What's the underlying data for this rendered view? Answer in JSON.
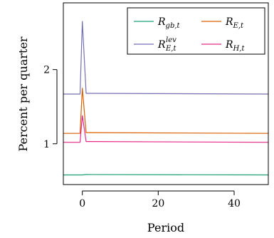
{
  "chart_data": {
    "type": "line",
    "title": "",
    "xlabel": "Period",
    "ylabel": "Percent per quarter",
    "xlim": [
      -5,
      49
    ],
    "ylim": [
      0.45,
      2.9
    ],
    "xticks": [
      0,
      20,
      40
    ],
    "yticks": [
      1,
      2
    ],
    "xtick_labels": [
      "0",
      "20",
      "40"
    ],
    "ytick_labels": [
      "1",
      "2"
    ],
    "grid": false,
    "legend_position": "top-right",
    "series": [
      {
        "key": "rgb",
        "legend": {
          "base": "R",
          "sub": "gb,t",
          "sup": ""
        },
        "color": "#1b9e77",
        "x": [
          -5,
          0,
          1,
          49
        ],
        "y": [
          0.58,
          0.58,
          0.585,
          0.58
        ]
      },
      {
        "key": "re",
        "legend": {
          "base": "R",
          "sub": "E,t",
          "sup": ""
        },
        "color": "#d95f02",
        "x": [
          -5,
          -0.6,
          0,
          1,
          49
        ],
        "y": [
          1.14,
          1.14,
          1.75,
          1.15,
          1.14
        ]
      },
      {
        "key": "relev",
        "legend": {
          "base": "R",
          "sub": "E,t",
          "sup": "lev"
        },
        "color": "#7570b3",
        "x": [
          -5,
          -0.6,
          0,
          1,
          49
        ],
        "y": [
          1.67,
          1.67,
          2.65,
          1.68,
          1.67
        ]
      },
      {
        "key": "rh",
        "legend": {
          "base": "R",
          "sub": "H,t",
          "sup": ""
        },
        "color": "#e7298a",
        "x": [
          -5,
          -0.6,
          0,
          1,
          49
        ],
        "y": [
          1.02,
          1.02,
          1.38,
          1.03,
          1.02
        ]
      }
    ]
  }
}
